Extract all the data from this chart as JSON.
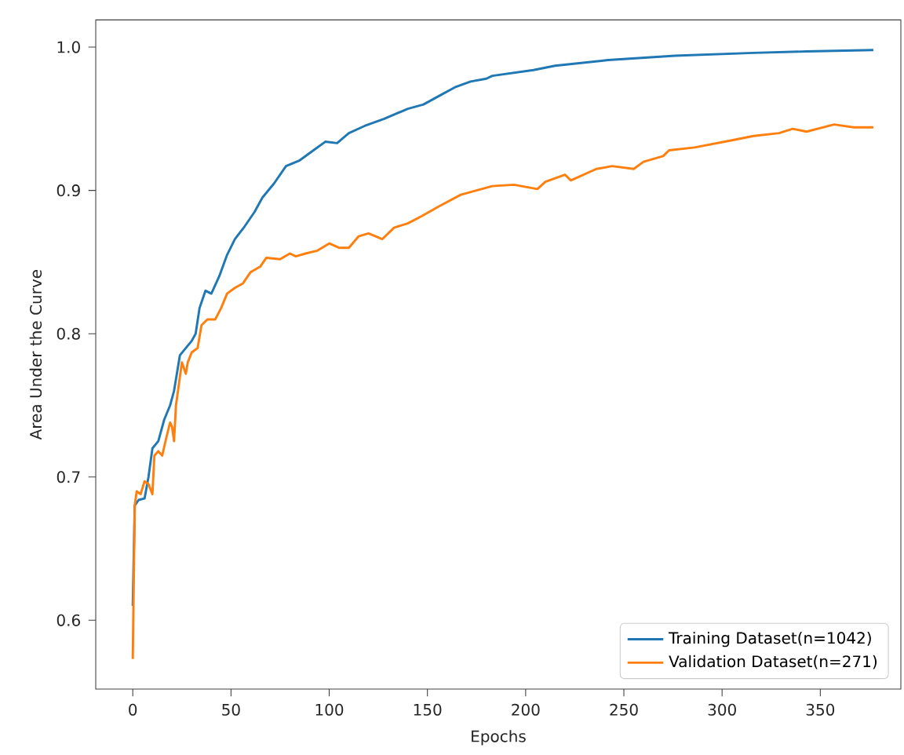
{
  "chart_data": {
    "type": "line",
    "xlabel": "Epochs",
    "ylabel": "Area Under the Curve",
    "xlim": [
      -18.85,
      391
    ],
    "ylim": [
      0.552,
      1.019
    ],
    "xticks": [
      0,
      50,
      100,
      150,
      200,
      250,
      300,
      350
    ],
    "yticks": [
      0.6,
      0.7,
      0.8,
      0.9,
      {
        "value": 1.0,
        "label": "1.0"
      }
    ],
    "legend": "bottom right",
    "grid": false,
    "line_style": "solid",
    "marker": "none",
    "series": [
      {
        "name": "Training Dataset(n=1042)",
        "color": "#1f77b4",
        "x": [
          0,
          1,
          3,
          6,
          8,
          10,
          13,
          16,
          19,
          21,
          24,
          27,
          30,
          32,
          34,
          37,
          40,
          44,
          48,
          52,
          57,
          62,
          66,
          72,
          78,
          85,
          92,
          98,
          104,
          110,
          118,
          128,
          140,
          148,
          156,
          164,
          172,
          180,
          183,
          204,
          215,
          242,
          276,
          316,
          343,
          377
        ],
        "values": [
          0.61,
          0.68,
          0.684,
          0.685,
          0.7,
          0.72,
          0.725,
          0.74,
          0.75,
          0.76,
          0.785,
          0.79,
          0.795,
          0.8,
          0.818,
          0.83,
          0.828,
          0.84,
          0.855,
          0.866,
          0.875,
          0.885,
          0.895,
          0.905,
          0.917,
          0.921,
          0.928,
          0.934,
          0.933,
          0.94,
          0.945,
          0.95,
          0.957,
          0.96,
          0.966,
          0.972,
          0.976,
          0.978,
          0.98,
          0.984,
          0.987,
          0.991,
          0.994,
          0.996,
          0.997,
          0.998
        ]
      },
      {
        "name": "Validation Dataset(n=271)",
        "color": "#ff7f0e",
        "x": [
          0,
          1,
          2,
          4,
          6,
          8,
          10,
          11,
          13,
          15,
          17,
          19,
          20,
          21,
          22,
          25,
          27,
          28,
          30,
          33,
          35,
          38,
          42,
          45,
          48,
          52,
          56,
          60,
          65,
          68,
          75,
          80,
          83,
          88,
          94,
          100,
          105,
          110,
          115,
          120,
          127,
          133,
          140,
          147,
          156,
          167,
          183,
          194,
          206,
          210,
          220,
          223,
          236,
          244,
          255,
          260,
          270,
          273,
          286,
          305,
          316,
          329,
          336,
          343,
          357,
          367,
          377
        ],
        "values": [
          0.573,
          0.68,
          0.69,
          0.688,
          0.697,
          0.695,
          0.688,
          0.715,
          0.718,
          0.715,
          0.727,
          0.738,
          0.735,
          0.725,
          0.75,
          0.78,
          0.772,
          0.78,
          0.787,
          0.79,
          0.806,
          0.81,
          0.81,
          0.818,
          0.828,
          0.832,
          0.835,
          0.843,
          0.847,
          0.853,
          0.852,
          0.856,
          0.854,
          0.856,
          0.858,
          0.863,
          0.86,
          0.86,
          0.868,
          0.87,
          0.866,
          0.874,
          0.877,
          0.882,
          0.889,
          0.897,
          0.903,
          0.904,
          0.901,
          0.906,
          0.911,
          0.907,
          0.915,
          0.917,
          0.915,
          0.92,
          0.924,
          0.928,
          0.93,
          0.935,
          0.938,
          0.94,
          0.943,
          0.941,
          0.946,
          0.944,
          0.944
        ]
      }
    ]
  }
}
